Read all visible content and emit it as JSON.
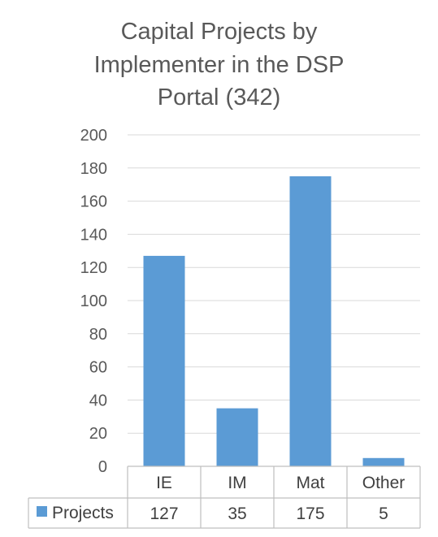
{
  "chart_data": {
    "type": "bar",
    "title": "Capital Projects by Implementer in the DSP Portal (342)",
    "title_lines": [
      "Capital Projects by",
      "Implementer in the DSP",
      "Portal (342)"
    ],
    "categories": [
      "IE",
      "IM",
      "Mat",
      "Other"
    ],
    "series": [
      {
        "name": "Projects",
        "values": [
          127,
          35,
          175,
          5
        ],
        "color": "#5b9bd5"
      }
    ],
    "ylim": [
      0,
      200
    ],
    "yticks": [
      0,
      20,
      40,
      60,
      80,
      100,
      120,
      140,
      160,
      180,
      200
    ],
    "grid": true,
    "legend": "data-table-left",
    "data_table": true
  }
}
